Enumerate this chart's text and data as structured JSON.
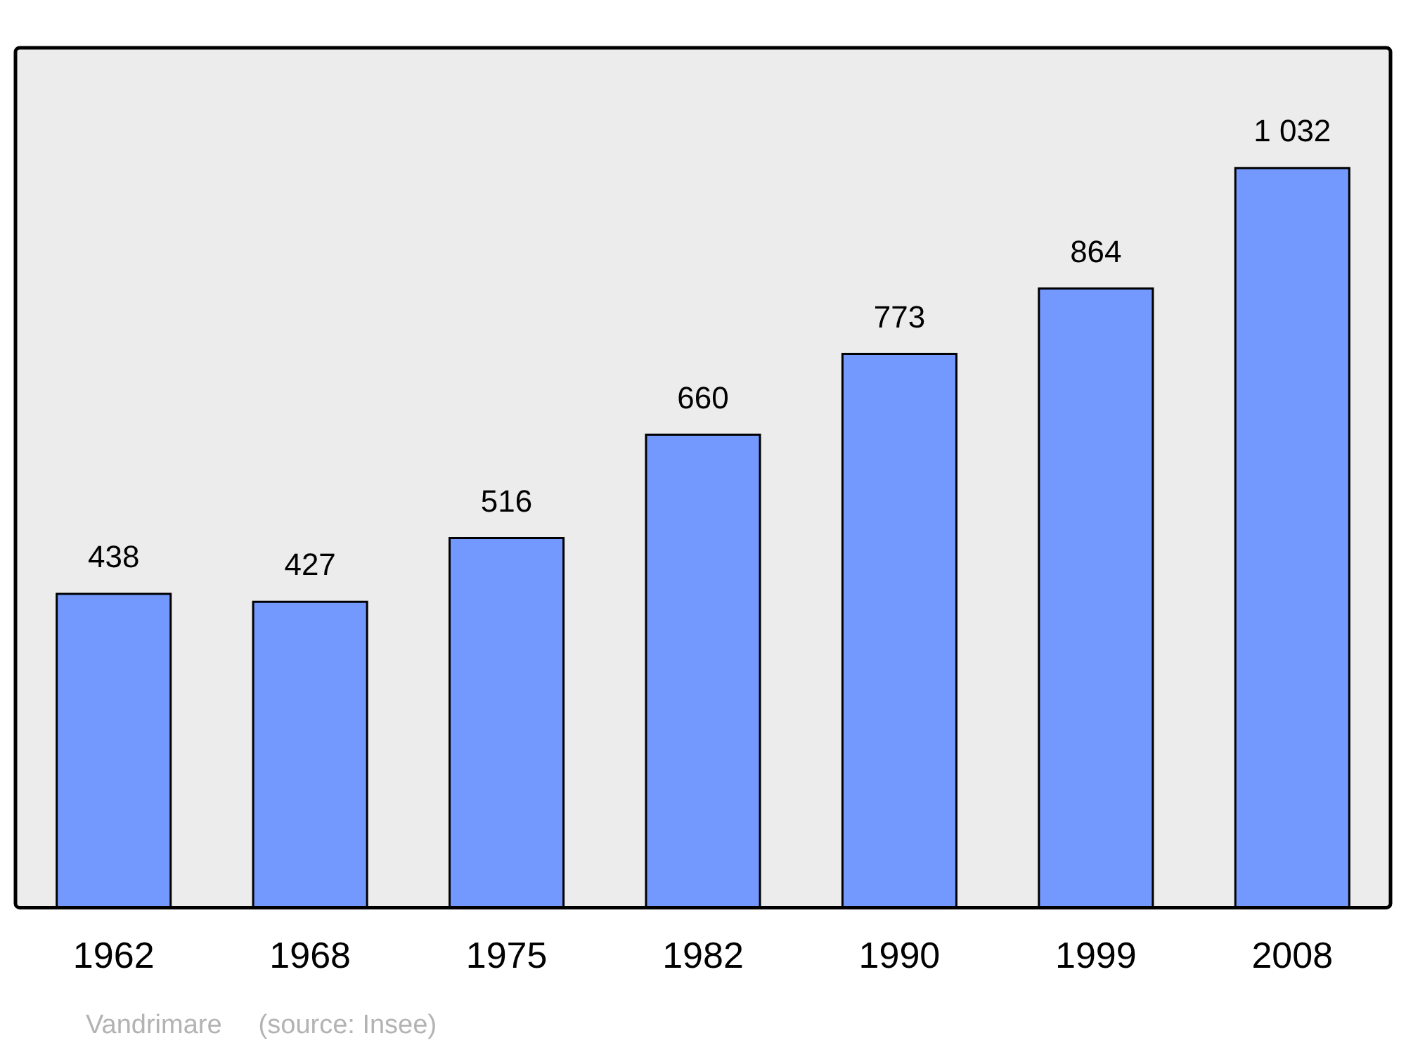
{
  "chart_data": {
    "type": "bar",
    "categories": [
      "1962",
      "1968",
      "1975",
      "1982",
      "1990",
      "1999",
      "2008"
    ],
    "values": [
      438,
      427,
      516,
      660,
      773,
      864,
      1032
    ],
    "color": "#7399ff",
    "value_labels": [
      "438",
      "427",
      "516",
      "660",
      "773",
      "864",
      "1 032"
    ],
    "annotations": [
      "Vandrimare",
      "(source: Insee)"
    ],
    "grid": false,
    "legend": false
  }
}
